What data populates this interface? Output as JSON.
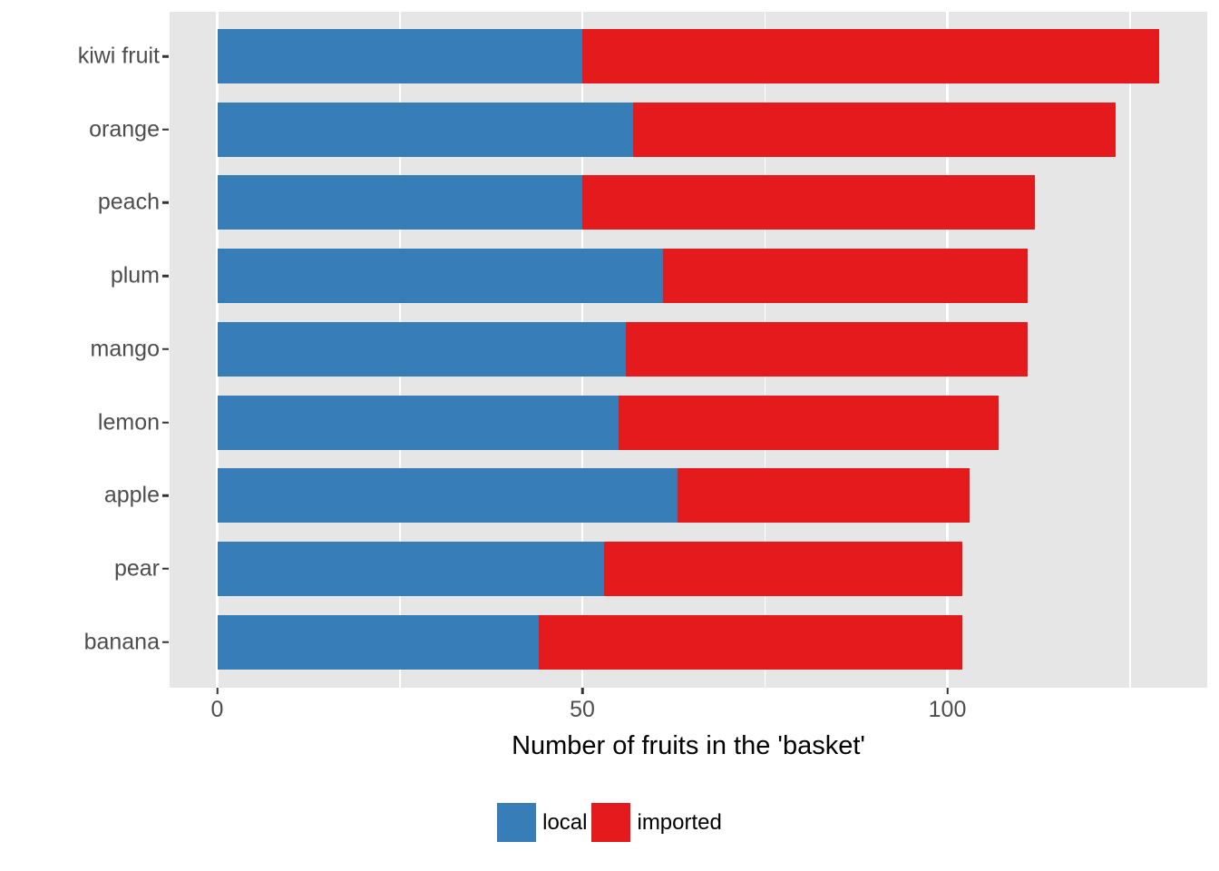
{
  "chart_data": {
    "type": "bar",
    "orientation": "horizontal",
    "stacked": true,
    "title": "",
    "xlabel": "Number of fruits in the 'basket'",
    "ylabel": "",
    "categories": [
      "kiwi fruit",
      "orange",
      "peach",
      "plum",
      "mango",
      "lemon",
      "apple",
      "pear",
      "banana"
    ],
    "series": [
      {
        "name": "local",
        "color": "#377EB8",
        "values": [
          50,
          57,
          50,
          61,
          56,
          55,
          63,
          53,
          44
        ]
      },
      {
        "name": "imported",
        "color": "#E41A1C",
        "values": [
          79,
          66,
          62,
          50,
          55,
          52,
          40,
          49,
          58
        ]
      }
    ],
    "totals": [
      129,
      123,
      112,
      111,
      111,
      107,
      103,
      102,
      102
    ],
    "x_tick_labels": [
      "0",
      "50",
      "100"
    ],
    "x_ticks": [
      0,
      50,
      100
    ],
    "x_minor_ticks": [
      25,
      75,
      125
    ],
    "xlim": [
      -6.5,
      135.6
    ],
    "grid": "on",
    "legend_position": "bottom",
    "colors": {
      "panel_background": "#E6E6E6",
      "grid_line": "#FFFFFF",
      "axis_text": "#4D4D4D",
      "tick_mark": "#333333",
      "title_text": "#000000"
    }
  }
}
